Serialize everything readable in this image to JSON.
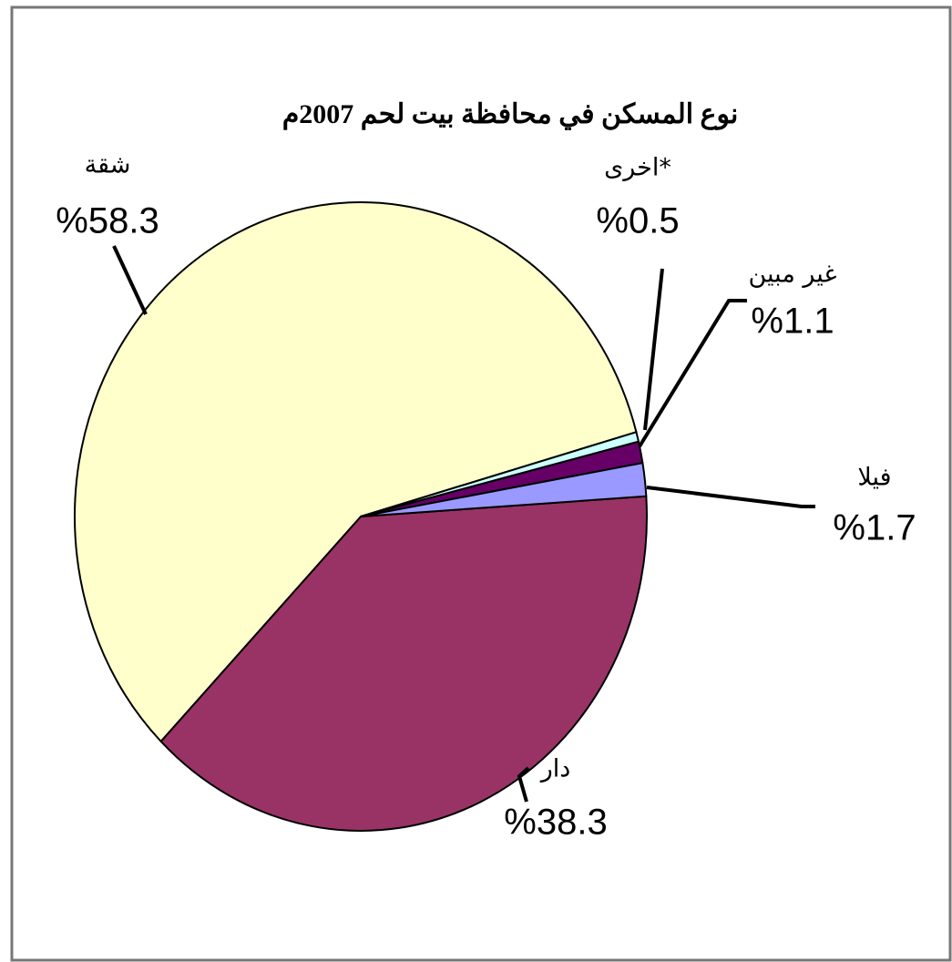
{
  "chart_data": {
    "type": "pie",
    "title": "نوع المسكن في محافظة بيت لحم 2007م",
    "categories": [
      "دار",
      "شقة",
      "اخرى*",
      "غير مبين",
      "فيلا"
    ],
    "values": [
      38.3,
      58.3,
      0.5,
      1.1,
      1.7
    ],
    "value_labels": [
      "%38.3",
      "%58.3",
      "%0.5",
      "%1.1",
      "%1.7"
    ],
    "colors": [
      "#993366",
      "#ffffcc",
      "#ccffff",
      "#660066",
      "#9999ff"
    ]
  }
}
